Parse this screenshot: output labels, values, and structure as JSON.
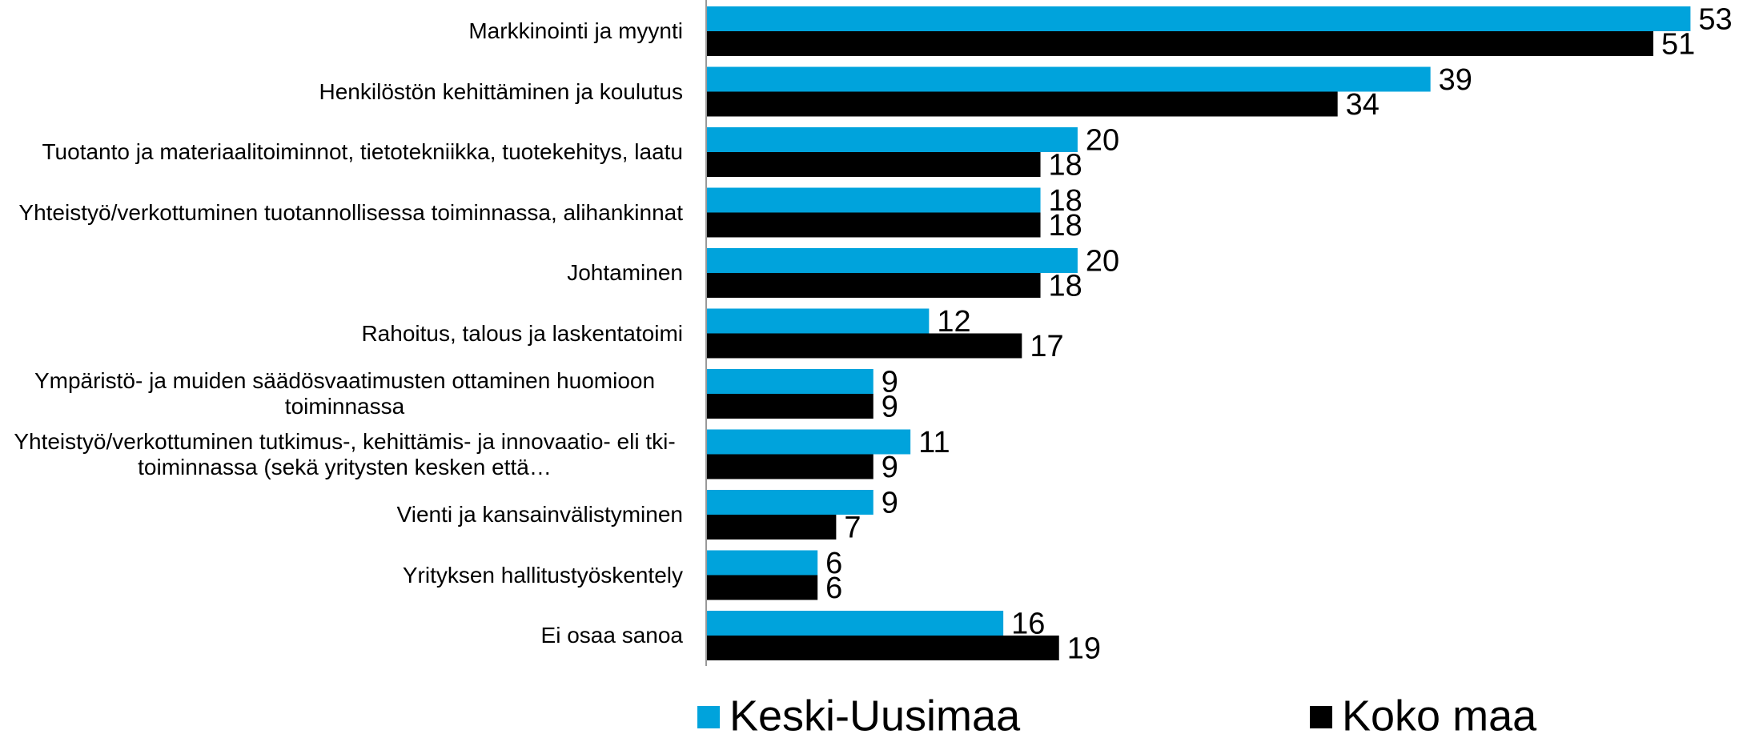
{
  "chart_data": {
    "type": "barh",
    "categories": [
      "Markkinointi ja myynti",
      "Henkilöstön kehittäminen ja koulutus",
      "Tuotanto ja materiaalitoiminnot, tietotekniikka, tuotekehitys, laatu",
      "Yhteistyö/verkottuminen tuotannollisessa toiminnassa, alihankinnat",
      "Johtaminen",
      "Rahoitus, talous ja laskentatoimi",
      "Ympäristö- ja muiden säädösvaatimusten ottaminen huomioon toiminnassa",
      "Yhteistyö/verkottuminen tutkimus-, kehittämis- ja innovaatio- eli tki-toiminnassa (sekä yritysten kesken että…",
      "Vienti ja kansainvälistyminen",
      "Yrityksen hallitustyöskentely",
      "Ei osaa sanoa"
    ],
    "series": [
      {
        "name": "Keski-Uusimaa",
        "color": "#00a3dc",
        "values": [
          53,
          39,
          20,
          18,
          20,
          12,
          9,
          11,
          9,
          6,
          16
        ]
      },
      {
        "name": "Koko maa",
        "color": "#000000",
        "values": [
          51,
          34,
          18,
          18,
          18,
          17,
          9,
          9,
          7,
          6,
          19
        ]
      }
    ],
    "xlim": [
      0,
      56
    ]
  }
}
